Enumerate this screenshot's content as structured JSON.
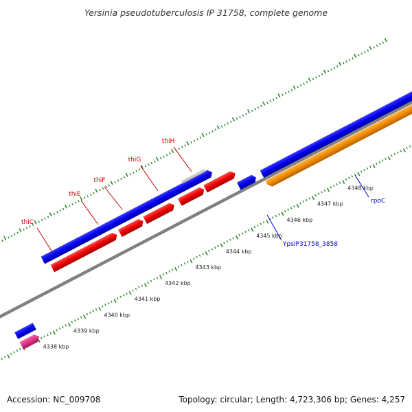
{
  "title": "Yersinia pseudotuberculosis IP 31758, complete genome",
  "footer": {
    "accession": "Accession: NC_009708",
    "summary": "Topology: circular; Length: 4,723,306 bp; Genes: 4,257"
  },
  "colors": {
    "backbone": "#808080",
    "tick": "#2a8a2a",
    "gene_blue": "#0000ee",
    "gene_red": "#ee0000",
    "gene_orange": "#f08a00",
    "gene_gray": "#c0c0c0",
    "gene_magenta": "#e0207a",
    "label_red": "#cc0000",
    "label_blue": "#0000cc"
  },
  "scale_labels": [
    {
      "kbp": 4338,
      "label": "4338 kbp"
    },
    {
      "kbp": 4339,
      "label": "4339 kbp"
    },
    {
      "kbp": 4340,
      "label": "4340 kbp"
    },
    {
      "kbp": 4341,
      "label": "4341 kbp"
    },
    {
      "kbp": 4342,
      "label": "4342 kbp"
    },
    {
      "kbp": 4343,
      "label": "4343 kbp"
    },
    {
      "kbp": 4344,
      "label": "4344 kbp"
    },
    {
      "kbp": 4345,
      "label": "4345 kbp"
    },
    {
      "kbp": 4346,
      "label": "4346 kbp"
    },
    {
      "kbp": 4347,
      "label": "4347 kbp"
    },
    {
      "kbp": 4348,
      "label": "4348 kbp"
    }
  ],
  "gene_labels": [
    {
      "name": "thiC",
      "color": "label_red"
    },
    {
      "name": "thiE",
      "color": "label_red"
    },
    {
      "name": "thiF",
      "color": "label_red"
    },
    {
      "name": "thiG",
      "color": "label_red"
    },
    {
      "name": "thiH",
      "color": "label_red"
    },
    {
      "name": "YpsIP31758_3858",
      "color": "label_blue"
    },
    {
      "name": "rpoC",
      "color": "label_blue"
    }
  ]
}
